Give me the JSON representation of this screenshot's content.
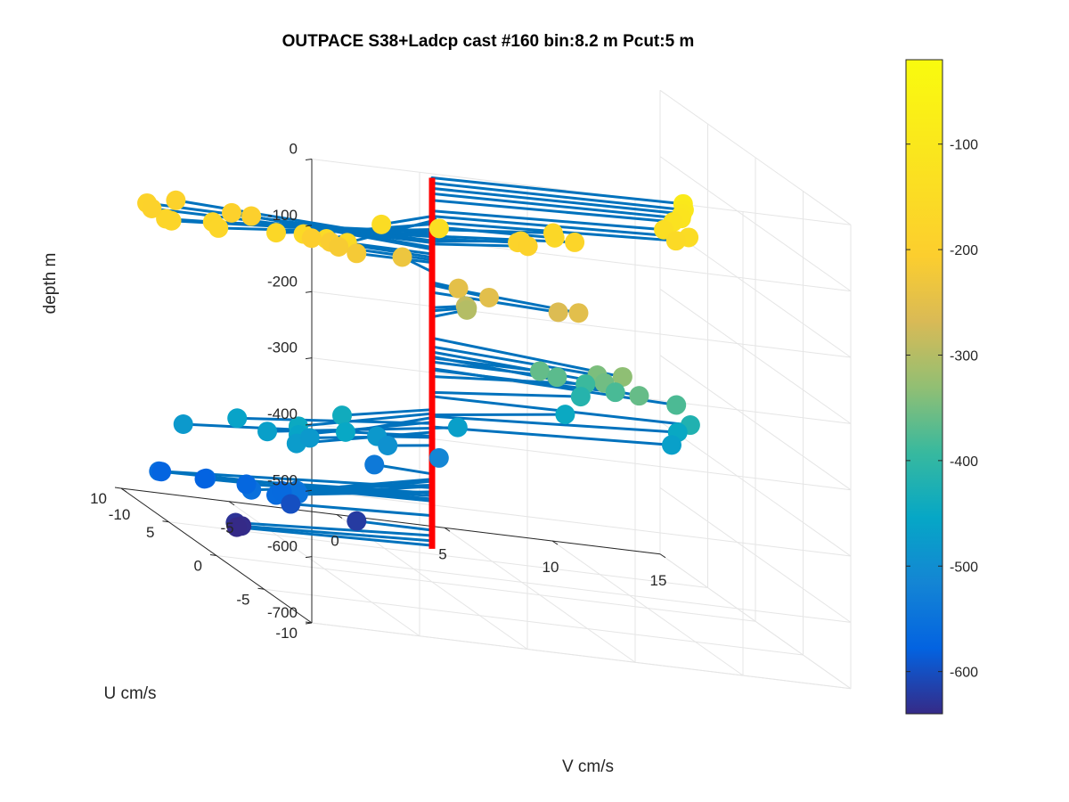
{
  "chart_data": {
    "type": "3d-quiver-scatter",
    "title": "OUTPACE S38+Ladcp cast #160 bin:8.2 m  Pcut:5 m",
    "xlabel": "V cm/s",
    "ylabel": "U cm/s",
    "zlabel": "depth m",
    "v_ticks": [
      "-10",
      "-5",
      "0",
      "5",
      "10",
      "15"
    ],
    "u_ticks": [
      "-10",
      "-5",
      "0",
      "5",
      "10"
    ],
    "depth_ticks": [
      "0",
      "-100",
      "-200",
      "-300",
      "-400",
      "-500",
      "-600",
      "-700"
    ],
    "vlim": [
      -10,
      15
    ],
    "ulim": [
      -10,
      10
    ],
    "zlim": [
      -700,
      0
    ],
    "colorbar": {
      "ticks": [
        "-100",
        "-200",
        "-300",
        "-400",
        "-500",
        "-600"
      ],
      "range": [
        -640,
        -20
      ],
      "colormap": "parula"
    },
    "profile_line": {
      "color": "#ff0000",
      "z_top": -90,
      "z_bottom": -650
    },
    "arrow_color": "#0072bd",
    "grid": true,
    "points": [
      {
        "v": 12.0,
        "u": 0.8,
        "z": -90
      },
      {
        "v": 12.0,
        "u": 0.7,
        "z": -98
      },
      {
        "v": 12.0,
        "u": 0.9,
        "z": -106
      },
      {
        "v": 12.0,
        "u": 1.0,
        "z": -114
      },
      {
        "v": 11.8,
        "u": 1.4,
        "z": -124
      },
      {
        "v": 11.5,
        "u": 1.7,
        "z": -140
      },
      {
        "v": 12.7,
        "u": 1.8,
        "z": -148
      },
      {
        "v": 12.2,
        "u": 2.0,
        "z": -157
      },
      {
        "v": 6.0,
        "u": 0.7,
        "z": -164
      },
      {
        "v": 6.5,
        "u": 2.0,
        "z": -168
      },
      {
        "v": 7.5,
        "u": 2.0,
        "z": -178
      },
      {
        "v": 4.5,
        "u": 1.2,
        "z": -182
      },
      {
        "v": 5.0,
        "u": 2.0,
        "z": -186
      },
      {
        "v": 5.2,
        "u": 1.7,
        "z": -190
      },
      {
        "v": -1.0,
        "u": -3.0,
        "z": -140
      },
      {
        "v": -3.5,
        "u": -2.6,
        "z": -148
      },
      {
        "v": -6.5,
        "u": -5.8,
        "z": -155
      },
      {
        "v": -7.2,
        "u": -5.2,
        "z": -158
      },
      {
        "v": -8.0,
        "u": -4.6,
        "z": -160
      },
      {
        "v": -9.0,
        "u": -4.0,
        "z": -168
      },
      {
        "v": -11.5,
        "u": -3.0,
        "z": -172
      },
      {
        "v": -11.5,
        "u": -3.6,
        "z": -175
      },
      {
        "v": -13.5,
        "u": -3.2,
        "z": -176
      },
      {
        "v": -13.5,
        "u": -2.6,
        "z": -179
      },
      {
        "v": -13.0,
        "u": 0.5,
        "z": -185
      },
      {
        "v": -13.0,
        "u": 0.0,
        "z": -188
      },
      {
        "v": -11.0,
        "u": 2.0,
        "z": -188
      },
      {
        "v": -8.5,
        "u": 1.8,
        "z": -195
      },
      {
        "v": -7.5,
        "u": 2.0,
        "z": -198
      },
      {
        "v": -5.5,
        "u": 0.2,
        "z": -205
      },
      {
        "v": -4.5,
        "u": 0.5,
        "z": -210
      },
      {
        "v": -4.2,
        "u": 0.3,
        "z": -214
      },
      {
        "v": -3.5,
        "u": 0.0,
        "z": -218
      },
      {
        "v": -0.5,
        "u": 2.0,
        "z": -232
      },
      {
        "v": 1.0,
        "u": -0.5,
        "z": -248
      },
      {
        "v": 2.2,
        "u": -1.0,
        "z": -252
      },
      {
        "v": 6.0,
        "u": -1.8,
        "z": -252
      },
      {
        "v": 5.5,
        "u": -0.8,
        "z": -263
      },
      {
        "v": 2.0,
        "u": 1.0,
        "z": -286
      },
      {
        "v": 2.2,
        "u": 1.3,
        "z": -291
      },
      {
        "v": 2.5,
        "u": 2.0,
        "z": -300
      },
      {
        "v": 7.6,
        "u": -2.8,
        "z": -332
      },
      {
        "v": 7.0,
        "u": -1.5,
        "z": -345
      },
      {
        "v": 7.2,
        "u": -1.8,
        "z": -353
      },
      {
        "v": 8.5,
        "u": -2.5,
        "z": -360
      },
      {
        "v": 5.0,
        "u": 0.0,
        "z": -362
      },
      {
        "v": 5.8,
        "u": 0.0,
        "z": -368
      },
      {
        "v": 10.8,
        "u": -1.2,
        "z": -378
      },
      {
        "v": 8.5,
        "u": 0.0,
        "z": -380
      },
      {
        "v": 8.0,
        "u": 2.0,
        "z": -390
      },
      {
        "v": 8.0,
        "u": 2.5,
        "z": -414
      },
      {
        "v": 12.2,
        "u": 0.5,
        "z": -420
      },
      {
        "v": 7.5,
        "u": 3.0,
        "z": -448
      },
      {
        "v": 12.5,
        "u": 2.5,
        "z": -450
      },
      {
        "v": 12.0,
        "u": 2.0,
        "z": -466
      },
      {
        "v": 1.5,
        "u": 0.7,
        "z": -468
      },
      {
        "v": -5.5,
        "u": -3.0,
        "z": -440
      },
      {
        "v": -8.5,
        "u": -5.2,
        "z": -446
      },
      {
        "v": -6.0,
        "u": -4.5,
        "z": -452
      },
      {
        "v": -8.5,
        "u": -5.2,
        "z": -459
      },
      {
        "v": -10.5,
        "u": -3.3,
        "z": -461
      },
      {
        "v": -9.5,
        "u": -4.2,
        "z": -468
      },
      {
        "v": -8.5,
        "u": -5.0,
        "z": -474
      },
      {
        "v": -13.0,
        "u": -3.3,
        "z": -480
      },
      {
        "v": -7.0,
        "u": -3.0,
        "z": -480
      },
      {
        "v": -3.0,
        "u": -1.0,
        "z": -482
      },
      {
        "v": -2.5,
        "u": -1.0,
        "z": -494
      },
      {
        "v": 0.5,
        "u": 0.4,
        "z": -515
      },
      {
        "v": -2.5,
        "u": 0.4,
        "z": -537
      },
      {
        "v": -8.5,
        "u": -5.0,
        "z": -545
      },
      {
        "v": -8.5,
        "u": -5.2,
        "z": -548
      },
      {
        "v": -10.5,
        "u": -4.8,
        "z": -554
      },
      {
        "v": -9.0,
        "u": -4.7,
        "z": -556
      },
      {
        "v": -14.0,
        "u": -3.0,
        "z": -558
      },
      {
        "v": -9.0,
        "u": -4.0,
        "z": -564
      },
      {
        "v": -8.3,
        "u": -3.0,
        "z": -565
      },
      {
        "v": -11.5,
        "u": -2.3,
        "z": -566
      },
      {
        "v": -9.5,
        "u": -2.0,
        "z": -570
      },
      {
        "v": -13.0,
        "u": -1.0,
        "z": -575
      },
      {
        "v": -11.0,
        "u": -1.0,
        "z": -578
      },
      {
        "v": -7.0,
        "u": -1.0,
        "z": -600
      },
      {
        "v": -3.5,
        "u": 0.0,
        "z": -622
      },
      {
        "v": -10.0,
        "u": -2.0,
        "z": -630
      },
      {
        "v": -9.5,
        "u": -1.5,
        "z": -638
      },
      {
        "v": -9.5,
        "u": -1.0,
        "z": -645
      }
    ]
  }
}
